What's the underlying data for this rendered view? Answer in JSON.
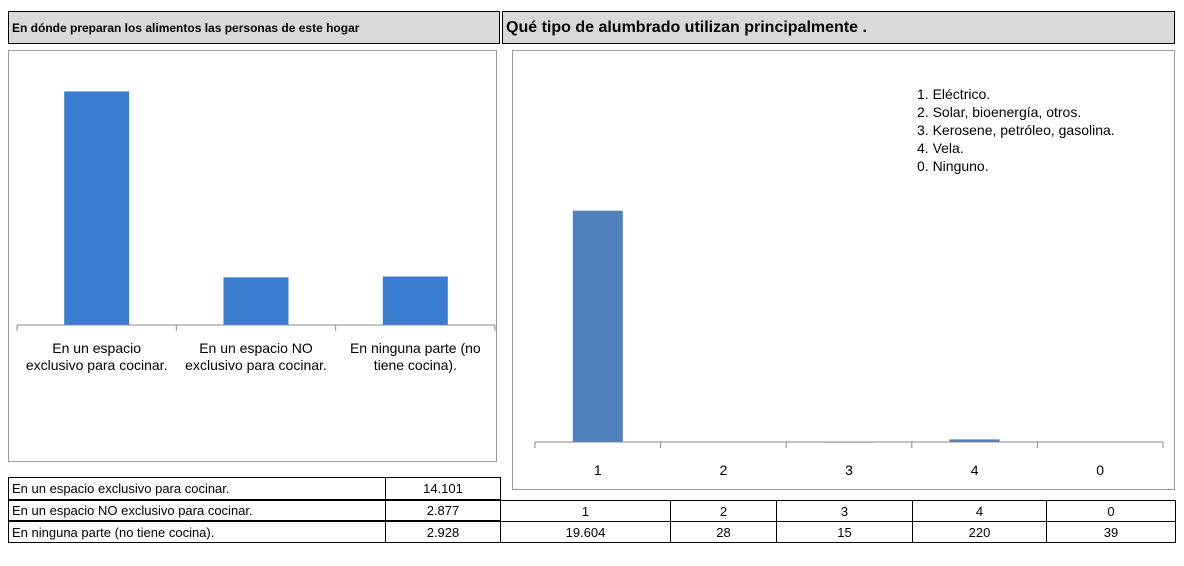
{
  "chart_data": [
    {
      "type": "bar",
      "title": "En dónde preparan los alimentos las personas de este hogar",
      "categories": [
        "En un espacio exclusivo para cocinar.",
        "En un espacio NO exclusivo para cocinar.",
        "En ninguna parte (no tiene cocina)."
      ],
      "values": [
        14101,
        2877,
        2928
      ],
      "value_labels": [
        "14.101",
        "2.877",
        "2.928"
      ],
      "color": "#3a7dd0",
      "ylim": [
        0,
        16000
      ]
    },
    {
      "type": "bar",
      "title": "Qué tipo de alumbrado utilizan principalmente .",
      "categories": [
        "1",
        "2",
        "3",
        "4",
        "0"
      ],
      "values": [
        19604,
        28,
        15,
        220,
        39
      ],
      "value_labels": [
        "19.604",
        "28",
        "15",
        "220",
        "39"
      ],
      "color": "#4f81bd",
      "ylim": [
        0,
        25000
      ],
      "annotations": [
        "1. Eléctrico.",
        "2. Solar, bioenergía, otros.",
        "3. Kerosene, petróleo, gasolina.",
        "4. Vela.",
        "0. Ninguno."
      ]
    }
  ]
}
